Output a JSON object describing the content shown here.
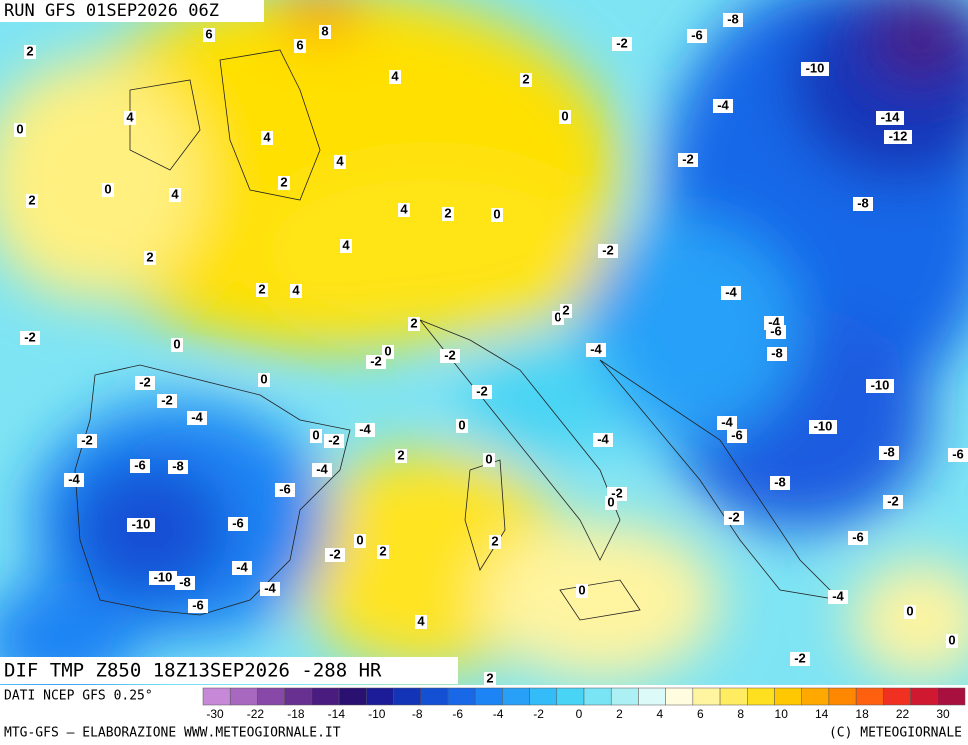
{
  "header": {
    "run": "RUN GFS 01SEP2026 06Z",
    "field": "DIF TMP Z850 18Z13SEP2026 -288 HR"
  },
  "footer": {
    "source": "DATI NCEP GFS 0.25°",
    "credit": "MTG-GFS — ELABORAZIONE WWW.METEOGIORNALE.IT",
    "copyright": "(C) METEOGIORNALE"
  },
  "colorbar": {
    "ticks": [
      -30,
      -22,
      -18,
      -14,
      -10,
      -8,
      -6,
      -4,
      -2,
      0,
      2,
      4,
      6,
      8,
      10,
      14,
      18,
      22,
      30
    ],
    "colors": [
      "#c888d8",
      "#a868c0",
      "#8848a8",
      "#683090",
      "#4a1c80",
      "#2a1070",
      "#1c1c98",
      "#1434b8",
      "#1450d4",
      "#1868e8",
      "#1c84f4",
      "#28a0f8",
      "#34bcf8",
      "#48d4f4",
      "#78e4f4",
      "#acf0f4",
      "#dcfaf8",
      "#fffce0",
      "#fff4a0",
      "#ffec60",
      "#ffe020",
      "#ffc800",
      "#ffa800",
      "#ff8800",
      "#ff6010",
      "#f03020",
      "#d01830",
      "#a81040"
    ]
  },
  "contour_labels": [
    "2",
    "6",
    "6",
    "8",
    "4",
    "2",
    "4",
    "0",
    "4",
    "4",
    "2",
    "0",
    "4",
    "2",
    "4",
    "2",
    "0",
    "4",
    "2",
    "2",
    "4",
    "2",
    "-2",
    "0",
    "-2",
    "0",
    "-2",
    "0",
    "-2",
    "-2",
    "-4",
    "-2",
    "0",
    "-2",
    "-4",
    "0",
    "2",
    "0",
    "-6",
    "-8",
    "-4",
    "-4",
    "-6",
    "-10",
    "-6",
    "-2",
    "0",
    "2",
    "2",
    "-10",
    "-8",
    "-4",
    "-4",
    "-6",
    "0",
    "4",
    "0",
    "-2",
    "-6",
    "-8",
    "-10",
    "-4",
    "-2",
    "-14",
    "-12",
    "-8",
    "-2",
    "-4",
    "0",
    "2",
    "-4",
    "-6",
    "-8",
    "-4",
    "-2",
    "-10",
    "-10",
    "-4",
    "-6",
    "-4",
    "-8",
    "-8",
    "-2",
    "0",
    "-2",
    "-2",
    "-6",
    "-4",
    "0",
    "0",
    "-2",
    "2",
    "-6"
  ]
}
